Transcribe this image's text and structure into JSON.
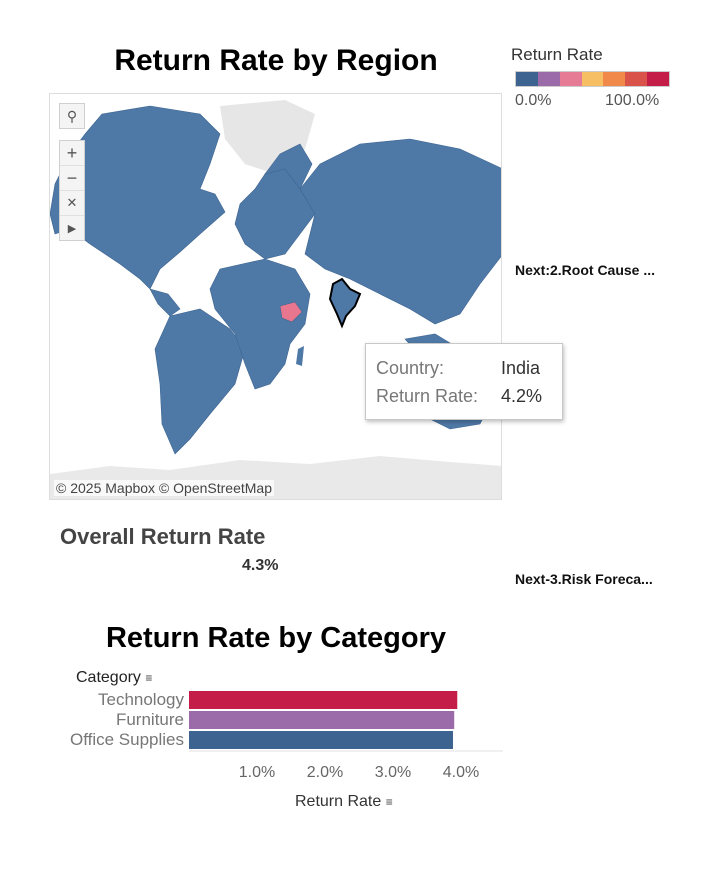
{
  "map": {
    "title": "Return Rate by Region",
    "attribution": "© 2025 Mapbox © OpenStreetMap",
    "tools": [
      "search-icon",
      "zoom-in-icon",
      "zoom-out-icon",
      "pin-clear-icon",
      "expand-arrow-icon"
    ],
    "base_color": "#4e79a7",
    "highlight_colors": {
      "ethiopia": "#e8768e",
      "india_border": "#000000"
    }
  },
  "legend": {
    "title": "Return Rate",
    "min_label": "0.0%",
    "max_label": "100.0%",
    "colors": [
      "#3d6491",
      "#9b6aa8",
      "#e57b95",
      "#f7bf63",
      "#f0894a",
      "#d9534a",
      "#c41e48"
    ]
  },
  "tooltip": {
    "country_label": "Country:",
    "country_value": "India",
    "rate_label": "Return Rate:",
    "rate_value": "4.2%"
  },
  "nav": {
    "next_root_cause": "Next:2.Root Cause ...",
    "next_risk_forecast": "Next-3.Risk Foreca..."
  },
  "overall": {
    "title": "Overall Return Rate",
    "value": "4.3%"
  },
  "category_chart": {
    "title": "Return Rate by Category",
    "header": "Category",
    "axis_title": "Return Rate",
    "chart_data": {
      "type": "bar",
      "orientation": "horizontal",
      "categories": [
        "Technology",
        "Furniture",
        "Office Supplies"
      ],
      "values": [
        4.4,
        4.35,
        4.33
      ],
      "colors": [
        "#c41e48",
        "#9b6aa8",
        "#3d6491"
      ],
      "xlabel": "Return Rate",
      "xticks": [
        "1.0%",
        "2.0%",
        "3.0%",
        "4.0%"
      ],
      "xtick_values": [
        1.0,
        2.0,
        3.0,
        4.0
      ],
      "xlim": [
        0,
        4.5
      ]
    }
  }
}
